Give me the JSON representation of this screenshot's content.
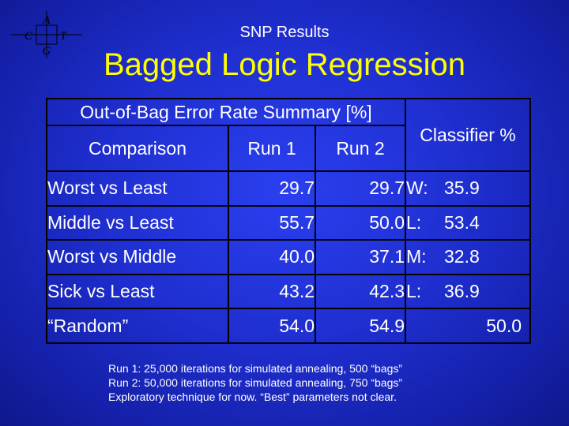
{
  "logo": {
    "letters": [
      "A",
      "C",
      "T",
      "G"
    ]
  },
  "subtitle": "SNP Results",
  "title": "Bagged Logic Regression",
  "table": {
    "caption": "Out-of-Bag Error Rate Summary [%]",
    "classifier_header": "Classifier %",
    "columns": [
      "Comparison",
      "Run 1",
      "Run 2"
    ],
    "rows": [
      {
        "comparison": "Worst vs Least",
        "run1": "29.7",
        "run2": "29.7",
        "cls_label": "W:",
        "cls_value": "35.9"
      },
      {
        "comparison": "Middle vs Least",
        "run1": "55.7",
        "run2": "50.0",
        "cls_label": "L:",
        "cls_value": "53.4"
      },
      {
        "comparison": "Worst vs Middle",
        "run1": "40.0",
        "run2": "37.1",
        "cls_label": "M:",
        "cls_value": "32.8"
      },
      {
        "comparison": "Sick vs Least",
        "run1": "43.2",
        "run2": "42.3",
        "cls_label": "L:",
        "cls_value": "36.9"
      },
      {
        "comparison": "“Random”",
        "run1": "54.0",
        "run2": "54.9",
        "cls_label": "",
        "cls_value": "50.0"
      }
    ]
  },
  "notes": [
    "Run 1:  25,000 iterations for simulated annealing, 500 “bags”",
    "Run 2:  50,000 iterations for simulated annealing, 750 “bags”",
    "Exploratory technique for now.  “Best” parameters not clear."
  ],
  "colors": {
    "background": "#1f2fd0",
    "title": "#ffff00",
    "text": "#ffffff",
    "grid": "#000000"
  }
}
